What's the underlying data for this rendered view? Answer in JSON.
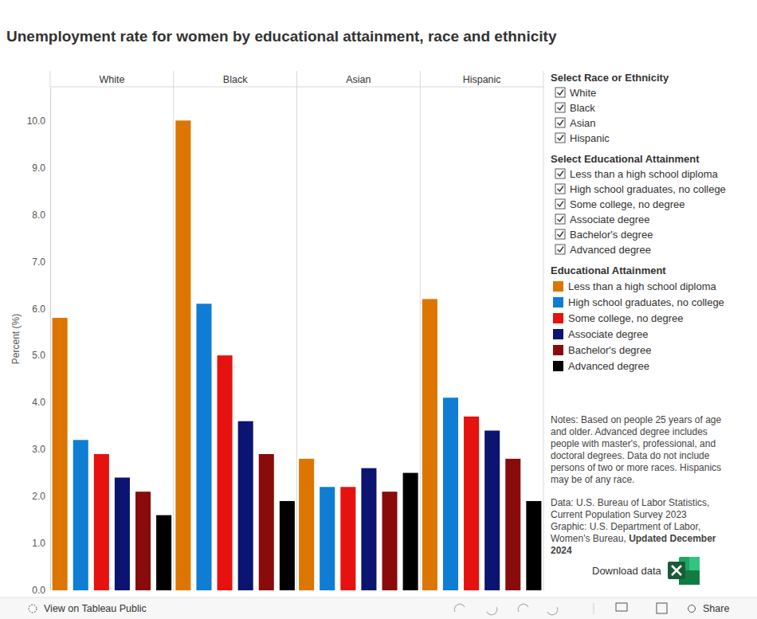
{
  "chart_data": {
    "type": "bar",
    "title": "Unemployment rate for women by educational attainment, race and ethnicity",
    "y_label": "Percent (%)",
    "legend_title": "Educational Attainment",
    "categories": [
      "White",
      "Black",
      "Asian",
      "Hispanic"
    ],
    "series": [
      {
        "name": "Less than a high school diploma",
        "color": "#dc7600",
        "values": [
          5.8,
          10.0,
          2.8,
          6.2
        ]
      },
      {
        "name": "High school graduates, no college",
        "color": "#0f7dd3",
        "values": [
          3.2,
          6.1,
          2.2,
          4.1
        ]
      },
      {
        "name": "Some college, no degree",
        "color": "#e5120f",
        "values": [
          2.9,
          5.0,
          2.2,
          3.7
        ]
      },
      {
        "name": "Associate degree",
        "color": "#0b1470",
        "values": [
          2.4,
          3.6,
          2.6,
          3.4
        ]
      },
      {
        "name": "Bachelor's degree",
        "color": "#8a0b0b",
        "values": [
          2.1,
          2.9,
          2.1,
          2.8
        ]
      },
      {
        "name": "Advanced degree",
        "color": "#000000",
        "values": [
          1.6,
          1.9,
          2.5,
          1.9
        ]
      }
    ],
    "ylim": [
      0,
      10.7
    ],
    "yticks": [
      {
        "value": 0,
        "label": "0.0"
      },
      {
        "value": 1,
        "label": "1.0"
      },
      {
        "value": 2,
        "label": "2.0"
      },
      {
        "value": 3,
        "label": "3.0"
      },
      {
        "value": 4,
        "label": "4.0"
      },
      {
        "value": 5,
        "label": "5.0"
      },
      {
        "value": 6,
        "label": "6.0"
      },
      {
        "value": 7,
        "label": "7.0"
      },
      {
        "value": 8,
        "label": "8.0"
      },
      {
        "value": 9,
        "label": "9.0"
      },
      {
        "value": 10,
        "label": "10.0"
      }
    ],
    "grid": false,
    "legend": "right"
  },
  "controls": [
    {
      "title": "Select Race or Ethnicity",
      "options": [
        "White",
        "Black",
        "Asian",
        "Hispanic"
      ]
    },
    {
      "title": "Select Educational Attainment",
      "options": [
        "Less than a high school diploma",
        "High school graduates, no college",
        "Some college, no degree",
        "Associate degree",
        "Bachelor's degree",
        "Advanced degree"
      ]
    }
  ],
  "notes": [
    "Notes: Based on people 25 years of age",
    "and older. Advanced degree includes",
    "people with master's, professional, and",
    "doctoral degrees. Data do not include",
    "persons of two or more races. Hispanics",
    "may be of any race."
  ],
  "source": [
    [
      {
        "text": "Data: U.S. Bureau of Labor Statistics,",
        "bold": false
      }
    ],
    [
      {
        "text": "Current Population Survey 2023",
        "bold": false
      }
    ],
    [
      {
        "text": "Graphic: U.S. Department of Labor,",
        "bold": false
      }
    ],
    [
      {
        "text": "Women's Bureau, ",
        "bold": false
      },
      {
        "text": "Updated December",
        "bold": true
      }
    ],
    [
      {
        "text": "2024",
        "bold": true
      }
    ]
  ],
  "download": "Download data",
  "toolbar": {
    "view": "View on Tableau Public",
    "share": "Share"
  }
}
